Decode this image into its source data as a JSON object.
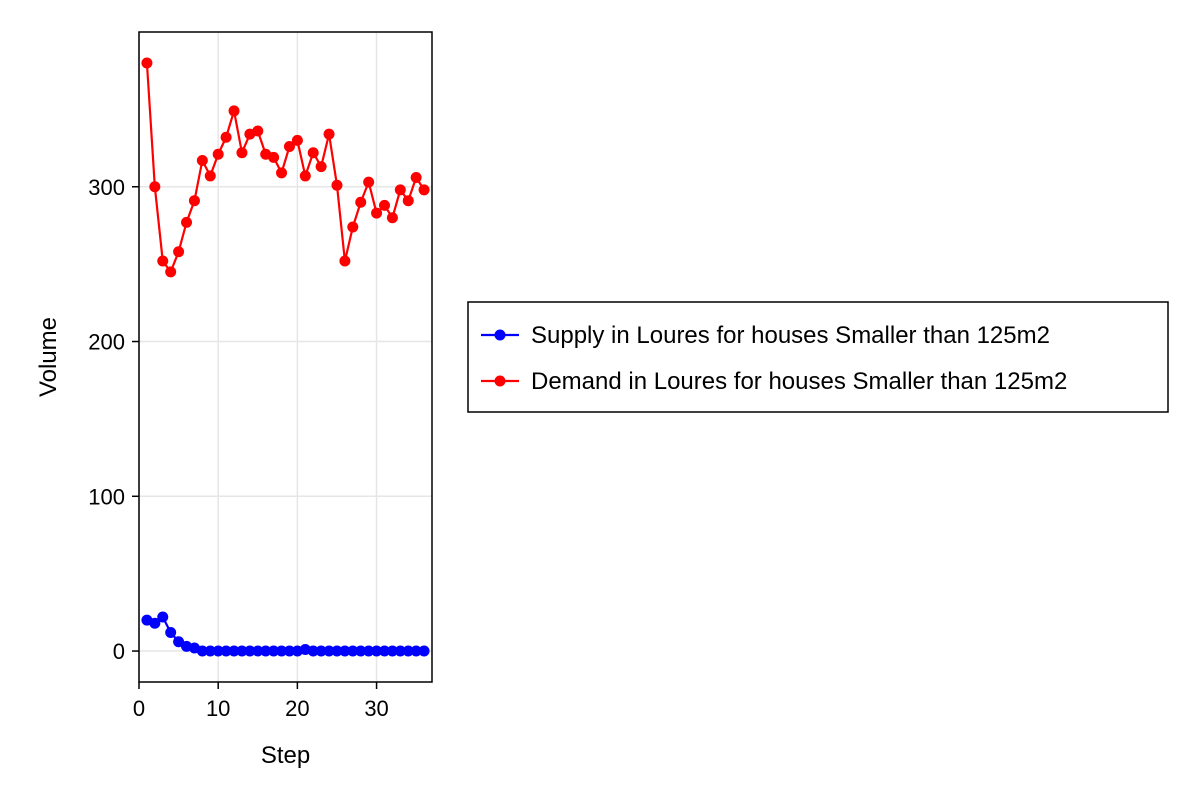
{
  "chart_data": {
    "type": "line",
    "xlabel": "Step",
    "ylabel": "Volume",
    "xlim": [
      0,
      37
    ],
    "ylim": [
      -20,
      400
    ],
    "xticks": [
      0,
      10,
      20,
      30
    ],
    "yticks": [
      0,
      100,
      200,
      300
    ],
    "grid": true,
    "legend_position": "right",
    "x": [
      1,
      2,
      3,
      4,
      5,
      6,
      7,
      8,
      9,
      10,
      11,
      12,
      13,
      14,
      15,
      16,
      17,
      18,
      19,
      20,
      21,
      22,
      23,
      24,
      25,
      26,
      27,
      28,
      29,
      30,
      31,
      32,
      33,
      34,
      35,
      36
    ],
    "series": [
      {
        "name": "Supply in Loures for houses Smaller than 125m2",
        "color": "#0000ff",
        "values": [
          20,
          18,
          22,
          12,
          6,
          3,
          2,
          0,
          0,
          0,
          0,
          0,
          0,
          0,
          0,
          0,
          0,
          0,
          0,
          0,
          1,
          0,
          0,
          0,
          0,
          0,
          0,
          0,
          0,
          0,
          0,
          0,
          0,
          0,
          0,
          0
        ]
      },
      {
        "name": "Demand in Loures for houses Smaller than 125m2",
        "color": "#ff0000",
        "values": [
          380,
          300,
          252,
          245,
          258,
          277,
          291,
          317,
          307,
          321,
          332,
          349,
          322,
          334,
          336,
          321,
          319,
          309,
          326,
          330,
          307,
          322,
          313,
          334,
          301,
          252,
          274,
          290,
          303,
          283,
          288,
          280,
          298,
          291,
          306,
          298
        ]
      }
    ]
  }
}
